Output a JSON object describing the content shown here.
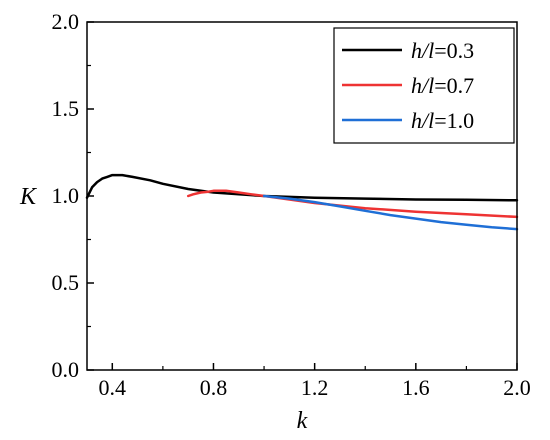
{
  "chart_data": {
    "type": "line",
    "title": "",
    "xlabel": "k",
    "ylabel": "K",
    "xlim": [
      0.3,
      2.0
    ],
    "ylim": [
      0.0,
      2.0
    ],
    "x_ticks": [
      "0.4",
      "0.8",
      "1.2",
      "1.6",
      "2.0"
    ],
    "y_ticks": [
      "0.0",
      "0.5",
      "1.0",
      "1.5",
      "2.0"
    ],
    "grid": false,
    "legend_position": "top-right",
    "series": [
      {
        "name": "h/l=0.3",
        "legend_var": "h/l",
        "legend_val": "=0.3",
        "color": "#000000",
        "x": [
          0.3,
          0.32,
          0.34,
          0.36,
          0.38,
          0.4,
          0.42,
          0.44,
          0.48,
          0.55,
          0.6,
          0.7,
          0.8,
          0.9,
          1.0,
          1.2,
          1.4,
          1.6,
          1.8,
          2.0
        ],
        "y": [
          0.99,
          1.05,
          1.08,
          1.1,
          1.11,
          1.12,
          1.12,
          1.12,
          1.11,
          1.09,
          1.07,
          1.04,
          1.02,
          1.01,
          1.0,
          0.99,
          0.985,
          0.98,
          0.978,
          0.975
        ]
      },
      {
        "name": "h/l=0.7",
        "legend_var": "h/l",
        "legend_val": "=0.7",
        "color": "#ee3333",
        "x": [
          0.7,
          0.72,
          0.75,
          0.78,
          0.8,
          0.85,
          0.9,
          0.95,
          1.0,
          1.1,
          1.2,
          1.4,
          1.6,
          1.8,
          2.0
        ],
        "y": [
          1.0,
          1.01,
          1.02,
          1.025,
          1.03,
          1.03,
          1.02,
          1.01,
          1.0,
          0.98,
          0.96,
          0.93,
          0.91,
          0.895,
          0.88
        ]
      },
      {
        "name": "h/l=1.0",
        "legend_var": "h/l",
        "legend_val": "=1.0",
        "color": "#1f6fd6",
        "x": [
          1.0,
          1.1,
          1.2,
          1.3,
          1.4,
          1.5,
          1.6,
          1.7,
          1.8,
          1.9,
          2.0
        ],
        "y": [
          1.0,
          0.985,
          0.965,
          0.94,
          0.915,
          0.89,
          0.87,
          0.85,
          0.835,
          0.82,
          0.81
        ]
      }
    ]
  }
}
